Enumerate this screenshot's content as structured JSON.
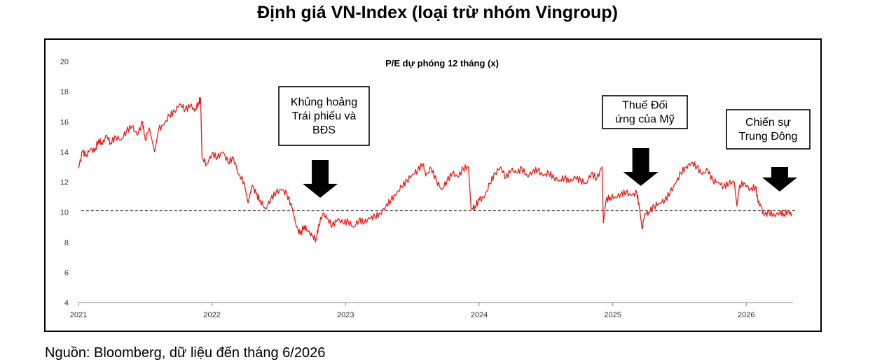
{
  "page": {
    "title": "Định giá VN-Index (loại trừ nhóm Vingroup)",
    "source": "Nguồn: Bloomberg, dữ liệu đến tháng 6/2026"
  },
  "colors": {
    "series": "#e0211b",
    "reference": "#333333",
    "annotation_border": "#000000",
    "arrow": "#000000"
  },
  "chart_data": {
    "type": "line",
    "title": "P/E dự phóng 12 tháng (x)",
    "xlabel": "",
    "ylabel": "",
    "xlim": [
      2021.0,
      2026.35
    ],
    "ylim": [
      4,
      20
    ],
    "yticks": [
      4,
      6,
      8,
      10,
      12,
      14,
      16,
      18,
      20
    ],
    "xticks": [
      {
        "x": 2021,
        "label": "2021"
      },
      {
        "x": 2022,
        "label": "2022"
      },
      {
        "x": 2023,
        "label": "2023"
      },
      {
        "x": 2024,
        "label": "2024"
      },
      {
        "x": 2025,
        "label": "2025"
      },
      {
        "x": 2026,
        "label": "2026"
      }
    ],
    "grid": false,
    "reference_line": {
      "y": 10.1,
      "x_start": 2021.02,
      "x_end": 2026.37,
      "style": "dashed"
    },
    "series": [
      {
        "values": [
          [
            2021.0,
            12.9
          ],
          [
            2021.03,
            14.0
          ],
          [
            2021.06,
            13.8
          ],
          [
            2021.09,
            14.2
          ],
          [
            2021.12,
            14.0
          ],
          [
            2021.15,
            14.8
          ],
          [
            2021.18,
            14.5
          ],
          [
            2021.21,
            15.1
          ],
          [
            2021.24,
            14.6
          ],
          [
            2021.28,
            15.0
          ],
          [
            2021.32,
            14.8
          ],
          [
            2021.36,
            15.4
          ],
          [
            2021.4,
            15.7
          ],
          [
            2021.44,
            15.1
          ],
          [
            2021.48,
            16.0
          ],
          [
            2021.5,
            14.8
          ],
          [
            2021.53,
            15.6
          ],
          [
            2021.57,
            14.0
          ],
          [
            2021.6,
            15.5
          ],
          [
            2021.64,
            15.8
          ],
          [
            2021.68,
            16.4
          ],
          [
            2021.72,
            16.7
          ],
          [
            2021.76,
            17.2
          ],
          [
            2021.8,
            16.8
          ],
          [
            2021.84,
            17.1
          ],
          [
            2021.87,
            16.7
          ],
          [
            2021.9,
            17.3
          ],
          [
            2021.915,
            17.5
          ],
          [
            2021.925,
            13.6
          ],
          [
            2021.96,
            13.2
          ],
          [
            2022.0,
            13.9
          ],
          [
            2022.04,
            13.6
          ],
          [
            2022.08,
            14.0
          ],
          [
            2022.12,
            13.3
          ],
          [
            2022.16,
            13.6
          ],
          [
            2022.2,
            12.5
          ],
          [
            2022.24,
            12.0
          ],
          [
            2022.27,
            10.6
          ],
          [
            2022.3,
            11.8
          ],
          [
            2022.33,
            11.2
          ],
          [
            2022.36,
            10.8
          ],
          [
            2022.4,
            10.2
          ],
          [
            2022.44,
            10.9
          ],
          [
            2022.48,
            11.3
          ],
          [
            2022.52,
            11.5
          ],
          [
            2022.56,
            11.2
          ],
          [
            2022.6,
            10.3
          ],
          [
            2022.63,
            9.1
          ],
          [
            2022.66,
            8.5
          ],
          [
            2022.69,
            9.1
          ],
          [
            2022.72,
            8.7
          ],
          [
            2022.75,
            8.4
          ],
          [
            2022.78,
            8.2
          ],
          [
            2022.8,
            9.2
          ],
          [
            2022.83,
            9.9
          ],
          [
            2022.86,
            9.6
          ],
          [
            2022.9,
            9.1
          ],
          [
            2022.94,
            9.5
          ],
          [
            2022.98,
            9.3
          ],
          [
            2023.02,
            9.4
          ],
          [
            2023.06,
            9.0
          ],
          [
            2023.1,
            9.5
          ],
          [
            2023.14,
            9.3
          ],
          [
            2023.18,
            9.6
          ],
          [
            2023.22,
            9.7
          ],
          [
            2023.26,
            9.9
          ],
          [
            2023.3,
            10.4
          ],
          [
            2023.34,
            10.8
          ],
          [
            2023.38,
            11.2
          ],
          [
            2023.42,
            11.7
          ],
          [
            2023.46,
            12.1
          ],
          [
            2023.5,
            12.5
          ],
          [
            2023.54,
            12.8
          ],
          [
            2023.58,
            13.2
          ],
          [
            2023.6,
            12.4
          ],
          [
            2023.64,
            12.9
          ],
          [
            2023.68,
            12.1
          ],
          [
            2023.72,
            11.5
          ],
          [
            2023.76,
            12.1
          ],
          [
            2023.8,
            12.6
          ],
          [
            2023.84,
            12.3
          ],
          [
            2023.88,
            12.9
          ],
          [
            2023.92,
            13.0
          ],
          [
            2023.94,
            10.2
          ],
          [
            2023.97,
            10.4
          ],
          [
            2024.0,
            10.8
          ],
          [
            2024.04,
            11.0
          ],
          [
            2024.08,
            11.9
          ],
          [
            2024.12,
            12.6
          ],
          [
            2024.16,
            13.0
          ],
          [
            2024.2,
            12.3
          ],
          [
            2024.24,
            12.8
          ],
          [
            2024.28,
            12.6
          ],
          [
            2024.32,
            12.9
          ],
          [
            2024.36,
            12.4
          ],
          [
            2024.4,
            12.7
          ],
          [
            2024.44,
            12.8
          ],
          [
            2024.48,
            12.4
          ],
          [
            2024.52,
            12.6
          ],
          [
            2024.56,
            12.3
          ],
          [
            2024.6,
            12.1
          ],
          [
            2024.64,
            12.3
          ],
          [
            2024.68,
            12.0
          ],
          [
            2024.72,
            12.3
          ],
          [
            2024.76,
            12.1
          ],
          [
            2024.8,
            11.9
          ],
          [
            2024.84,
            12.6
          ],
          [
            2024.88,
            12.2
          ],
          [
            2024.92,
            13.0
          ],
          [
            2024.93,
            9.3
          ],
          [
            2024.95,
            10.8
          ],
          [
            2024.98,
            11.0
          ],
          [
            2025.02,
            11.0
          ],
          [
            2025.06,
            11.2
          ],
          [
            2025.1,
            11.3
          ],
          [
            2025.14,
            11.1
          ],
          [
            2025.18,
            11.3
          ],
          [
            2025.2,
            10.3
          ],
          [
            2025.22,
            8.9
          ],
          [
            2025.24,
            9.9
          ],
          [
            2025.27,
            10.0
          ],
          [
            2025.31,
            10.4
          ],
          [
            2025.35,
            10.6
          ],
          [
            2025.39,
            10.8
          ],
          [
            2025.43,
            11.3
          ],
          [
            2025.47,
            11.9
          ],
          [
            2025.51,
            12.6
          ],
          [
            2025.55,
            13.0
          ],
          [
            2025.59,
            13.3
          ],
          [
            2025.63,
            13.0
          ],
          [
            2025.67,
            12.5
          ],
          [
            2025.71,
            12.8
          ],
          [
            2025.75,
            12.1
          ],
          [
            2025.79,
            12.0
          ],
          [
            2025.83,
            11.7
          ],
          [
            2025.87,
            11.9
          ],
          [
            2025.91,
            12.0
          ],
          [
            2025.93,
            10.4
          ],
          [
            2025.95,
            11.8
          ],
          [
            2025.99,
            11.9
          ],
          [
            2026.03,
            11.5
          ],
          [
            2026.07,
            11.7
          ],
          [
            2026.09,
            10.6
          ],
          [
            2026.11,
            10.4
          ],
          [
            2026.13,
            9.8
          ],
          [
            2026.17,
            10.0
          ],
          [
            2026.21,
            9.8
          ],
          [
            2026.25,
            10.0
          ],
          [
            2026.28,
            9.9
          ],
          [
            2026.32,
            10.0
          ],
          [
            2026.34,
            9.9
          ]
        ]
      }
    ],
    "annotations": [
      {
        "lines": [
          "Khủng hoảng",
          "Trái phiếu và",
          "BĐS"
        ],
        "arrow_x": 2022.81,
        "arrow_tip_y": 10.2
      },
      {
        "lines": [
          "Thuế Đối",
          "ứng của Mỹ"
        ],
        "arrow_x": 2025.21,
        "arrow_tip_y": 11.3
      },
      {
        "lines": [
          "Chiến sự",
          "Trung Đông"
        ],
        "arrow_x": 2026.25,
        "arrow_tip_y": 10.7
      }
    ]
  }
}
